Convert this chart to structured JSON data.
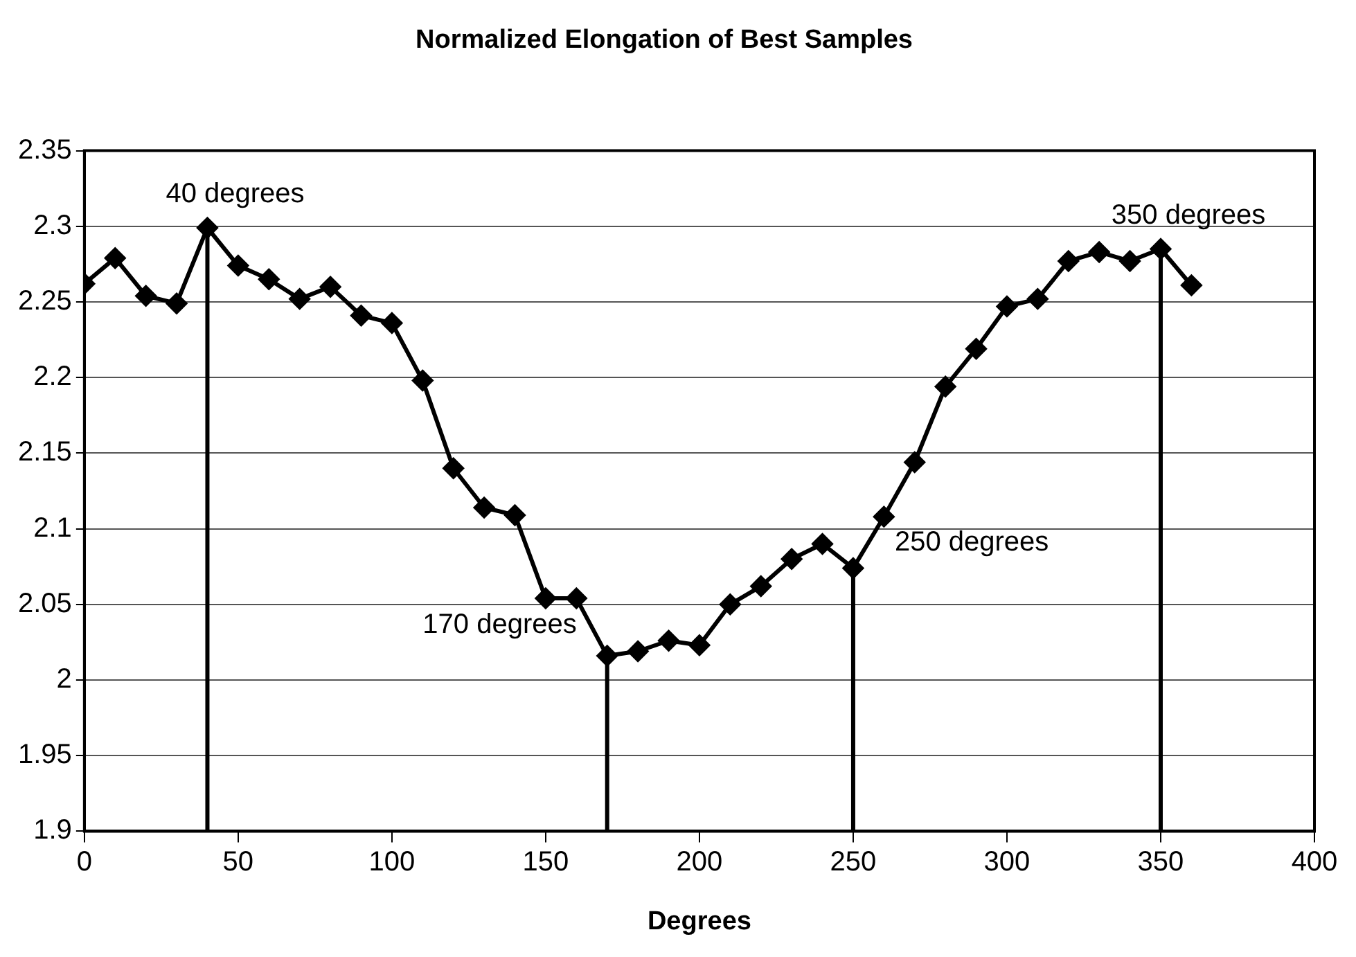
{
  "chart_data": {
    "type": "line",
    "title": "Normalized Elongation of Best Samples",
    "xlabel": "Degrees",
    "x": [
      0,
      10,
      20,
      30,
      40,
      50,
      60,
      70,
      80,
      90,
      100,
      110,
      120,
      130,
      140,
      150,
      160,
      170,
      180,
      190,
      200,
      210,
      220,
      230,
      240,
      250,
      260,
      270,
      280,
      290,
      300,
      310,
      320,
      330,
      340,
      350,
      360
    ],
    "series": [
      {
        "color": "#000000",
        "values": [
          2.262,
          2.279,
          2.254,
          2.249,
          2.299,
          2.274,
          2.265,
          2.252,
          2.26,
          2.241,
          2.236,
          2.198,
          2.14,
          2.114,
          2.109,
          2.054,
          2.054,
          2.016,
          2.019,
          2.026,
          2.023,
          2.05,
          2.062,
          2.08,
          2.09,
          2.074,
          2.108,
          2.144,
          2.194,
          2.219,
          2.247,
          2.252,
          2.277,
          2.283,
          2.277,
          2.285,
          2.261
        ]
      }
    ],
    "xlim": [
      0,
      400
    ],
    "xticks": [
      0,
      50,
      100,
      150,
      200,
      250,
      300,
      350,
      400
    ],
    "ylim": [
      1.9,
      2.35
    ],
    "yticks": [
      1.9,
      1.95,
      2,
      2.05,
      2.1,
      2.15,
      2.2,
      2.25,
      2.3,
      2.35
    ],
    "grid": "y",
    "legend": false,
    "marker": "diamond",
    "line_style": "solid",
    "ref_lines": [
      {
        "axis": "x",
        "value": 40,
        "label": "40 degrees",
        "color": "#000000"
      },
      {
        "axis": "x",
        "value": 170,
        "label": "170 degrees",
        "color": "#000000"
      },
      {
        "axis": "x",
        "value": 250,
        "label": "250 degrees",
        "color": "#000000"
      },
      {
        "axis": "x",
        "value": 350,
        "label": "350 degrees",
        "color": "#000000"
      }
    ]
  }
}
